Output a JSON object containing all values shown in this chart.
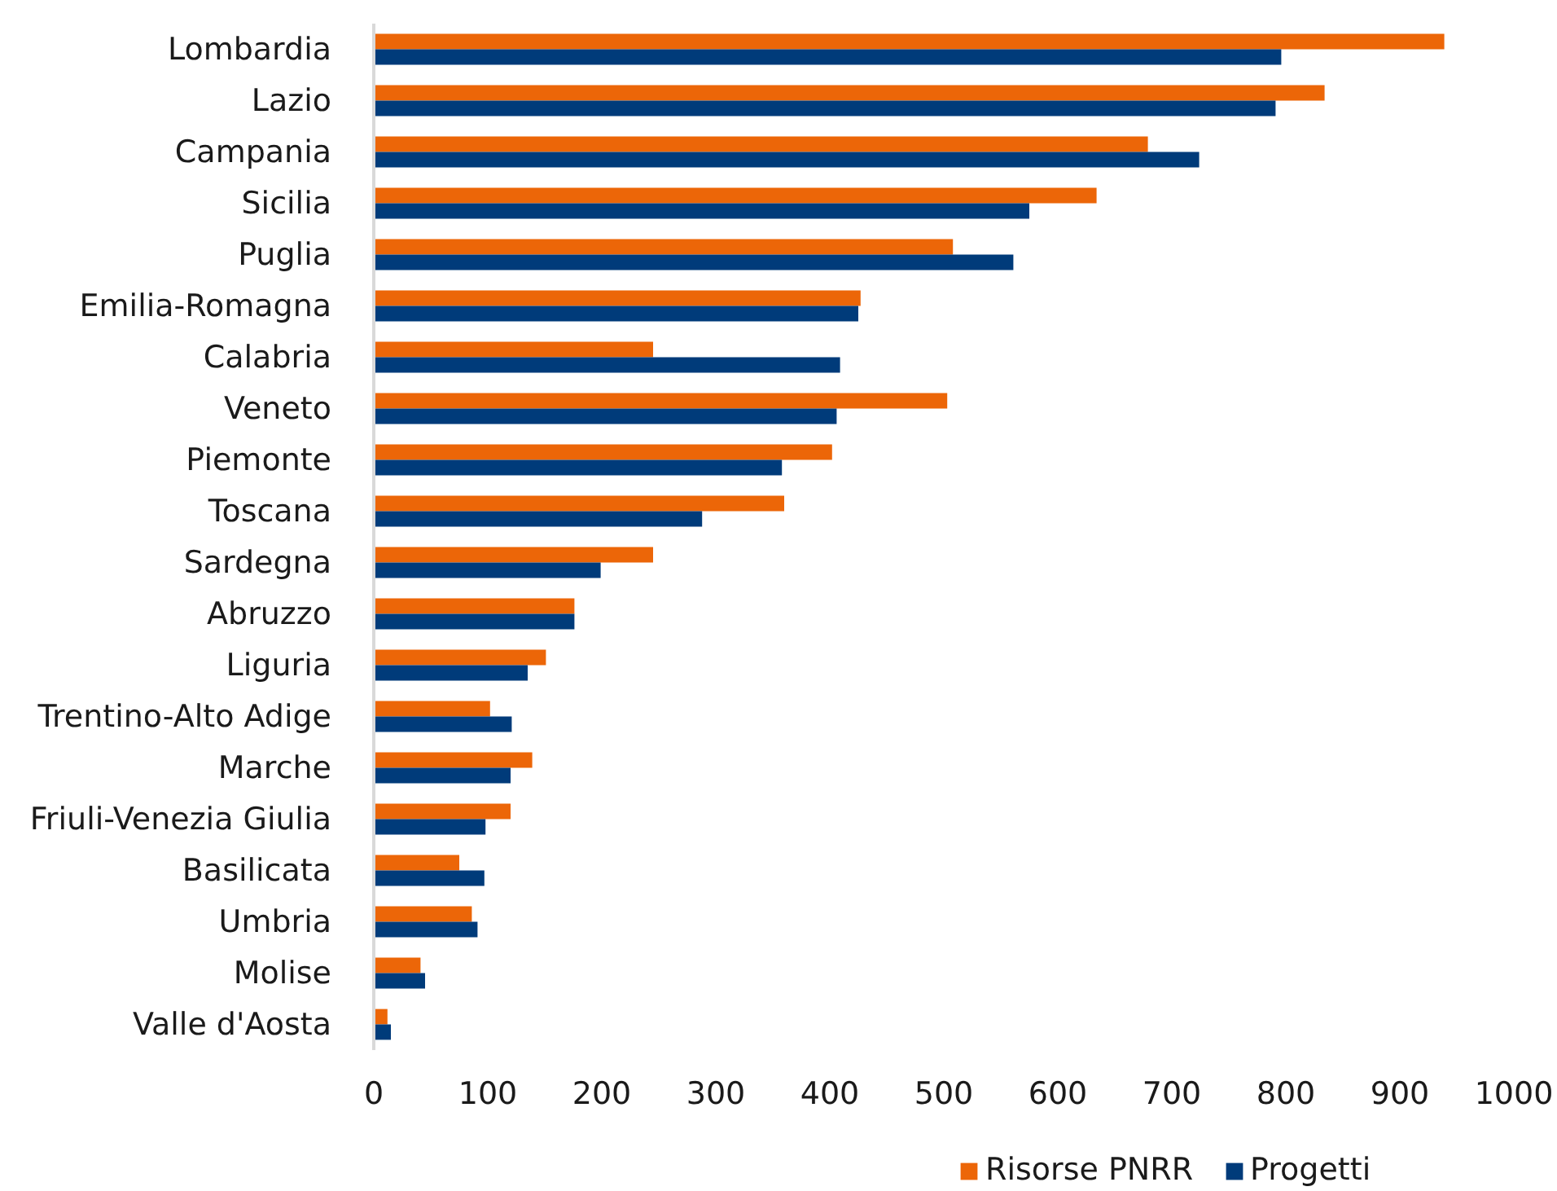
{
  "chart_data": {
    "type": "bar",
    "orientation": "horizontal",
    "categories": [
      "Lombardia",
      "Lazio",
      "Campania",
      "Sicilia",
      "Puglia",
      "Emilia-Romagna",
      "Calabria",
      "Veneto",
      "Piemonte",
      "Toscana",
      "Sardegna",
      "Abruzzo",
      "Liguria",
      "Trentino-Alto Adige",
      "Marche",
      "Friuli-Venezia Giulia",
      "Basilicata",
      "Umbria",
      "Molise",
      "Valle d'Aosta"
    ],
    "series": [
      {
        "name": "Risorse PNRR",
        "color": "#ec6608",
        "values": [
          939,
          834,
          679,
          634,
          508,
          427,
          245,
          503,
          402,
          360,
          245,
          176,
          151,
          102,
          139,
          120,
          75,
          86,
          41,
          12
        ]
      },
      {
        "name": "Progetti",
        "color": "#003b7a",
        "values": [
          796,
          791,
          724,
          575,
          561,
          425,
          409,
          406,
          358,
          288,
          199,
          176,
          135,
          121,
          120,
          98,
          97,
          91,
          45,
          15
        ]
      }
    ],
    "xlim": [
      0,
      1000
    ],
    "xticks": [
      0,
      100,
      200,
      300,
      400,
      500,
      600,
      700,
      800,
      900,
      1000
    ],
    "legend": "bottom"
  }
}
